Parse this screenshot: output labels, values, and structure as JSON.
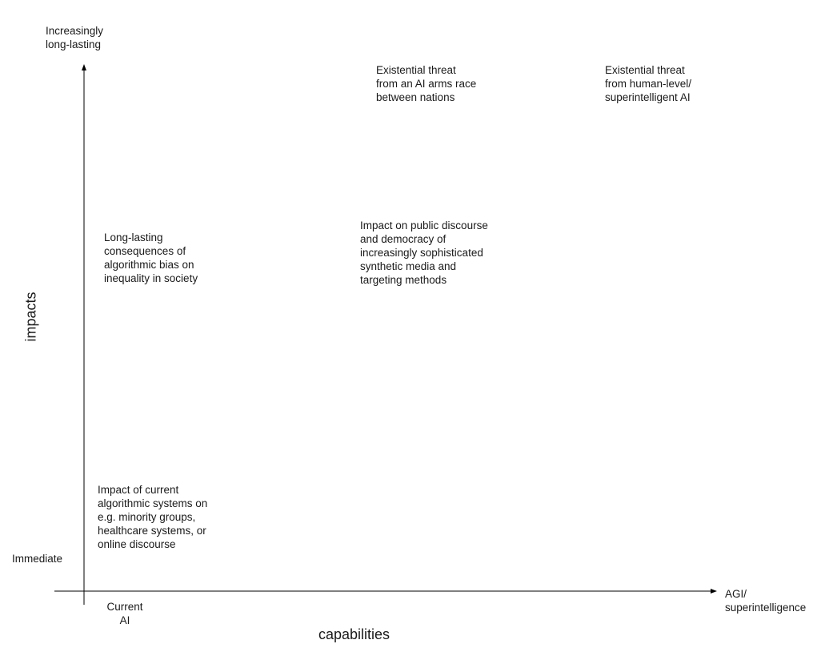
{
  "diagram": {
    "y_axis": {
      "label": "impacts",
      "top_label": "Increasingly\nlong-lasting",
      "bottom_label": "Immediate"
    },
    "x_axis": {
      "label": "capabilities",
      "left_label": "Current\nAI",
      "right_label": "AGI/\nsuperintelligence"
    },
    "items": [
      {
        "id": "existential-arms-race",
        "text": "Existential threat\nfrom an AI arms race\nbetween nations"
      },
      {
        "id": "existential-superintelligent",
        "text": "Existential threat\nfrom human-level/\nsuperintelligent AI"
      },
      {
        "id": "algorithmic-bias",
        "text": "Long-lasting\nconsequences of\nalgorithmic bias on\ninequality in society"
      },
      {
        "id": "public-discourse",
        "text": "Impact on public discourse\nand democracy of\nincreasingly sophisticated\nsynthetic media and\ntargeting methods"
      },
      {
        "id": "current-systems",
        "text": "Impact of current\nalgorithmic systems on\ne.g. minority groups,\nhealthcare systems, or\nonline discourse"
      }
    ]
  }
}
